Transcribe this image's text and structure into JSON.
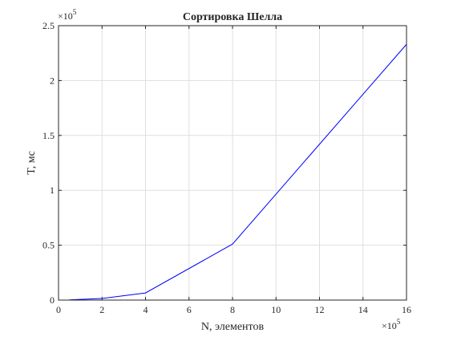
{
  "chart_data": {
    "type": "line",
    "title": "Сортировка Шелла",
    "xlabel": "N, элементов",
    "ylabel": "T, мс",
    "x_multiplier": "×10",
    "x_exponent": "5",
    "y_multiplier": "×10",
    "y_exponent": "5",
    "xlim": [
      0,
      1600000
    ],
    "ylim": [
      0,
      250000
    ],
    "x_ticks": [
      0,
      200000,
      400000,
      600000,
      800000,
      1000000,
      1200000,
      1400000,
      1600000
    ],
    "x_tick_labels": [
      "0",
      "2",
      "4",
      "6",
      "8",
      "10",
      "12",
      "14",
      "16"
    ],
    "y_ticks": [
      0,
      50000,
      100000,
      150000,
      200000,
      250000
    ],
    "y_tick_labels": [
      "0",
      "0.5",
      "1",
      "1.5",
      "2",
      "2.5"
    ],
    "grid": true,
    "series": [
      {
        "color": "#0000ff",
        "x": [
          50000,
          100000,
          200000,
          400000,
          800000,
          1600000
        ],
        "y": [
          200,
          600,
          1500,
          6500,
          51000,
          233000
        ]
      }
    ]
  }
}
